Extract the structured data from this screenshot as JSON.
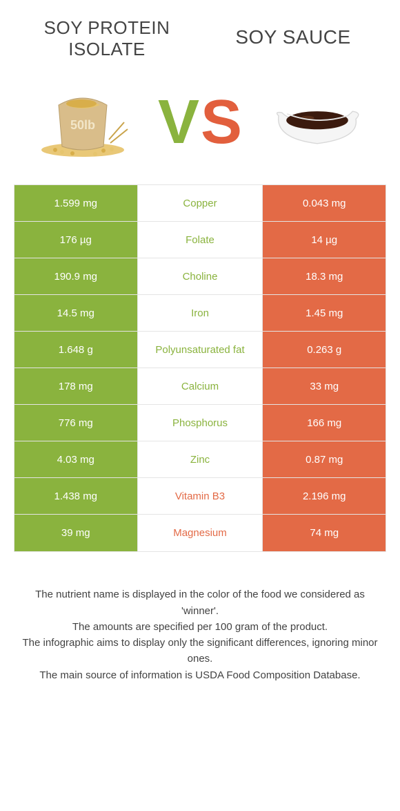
{
  "titles": {
    "left_line1": "SOY PROTEIN",
    "left_line2": "ISOLATE",
    "right": "SOY SAUCE"
  },
  "vs": {
    "v": "V",
    "s": "S"
  },
  "colors": {
    "green": "#8ab33e",
    "orange": "#e36a46",
    "border": "#e4e4e4",
    "text": "#333333",
    "footnote_text": "#424242",
    "background": "#ffffff"
  },
  "left_color_class": "bg-green",
  "right_color_class": "bg-orange",
  "rows": [
    {
      "left": "1.599 mg",
      "mid": "Copper",
      "right": "0.043 mg",
      "winner": "left"
    },
    {
      "left": "176 µg",
      "mid": "Folate",
      "right": "14 µg",
      "winner": "left"
    },
    {
      "left": "190.9 mg",
      "mid": "Choline",
      "right": "18.3 mg",
      "winner": "left"
    },
    {
      "left": "14.5 mg",
      "mid": "Iron",
      "right": "1.45 mg",
      "winner": "left"
    },
    {
      "left": "1.648 g",
      "mid": "Polyunsaturated fat",
      "right": "0.263 g",
      "winner": "left"
    },
    {
      "left": "178 mg",
      "mid": "Calcium",
      "right": "33 mg",
      "winner": "left"
    },
    {
      "left": "776 mg",
      "mid": "Phosphorus",
      "right": "166 mg",
      "winner": "left"
    },
    {
      "left": "4.03 mg",
      "mid": "Zinc",
      "right": "0.87 mg",
      "winner": "left"
    },
    {
      "left": "1.438 mg",
      "mid": "Vitamin B3",
      "right": "2.196 mg",
      "winner": "right"
    },
    {
      "left": "39 mg",
      "mid": "Magnesium",
      "right": "74 mg",
      "winner": "right"
    }
  ],
  "footnotes": {
    "l1": "The nutrient name is displayed in the color of the food we considered as 'winner'.",
    "l2": "The amounts are specified per 100 gram of the product.",
    "l3": "The infographic aims to display only the significant differences, ignoring minor ones.",
    "l4": "The main source of information is USDA Food Composition Database."
  }
}
